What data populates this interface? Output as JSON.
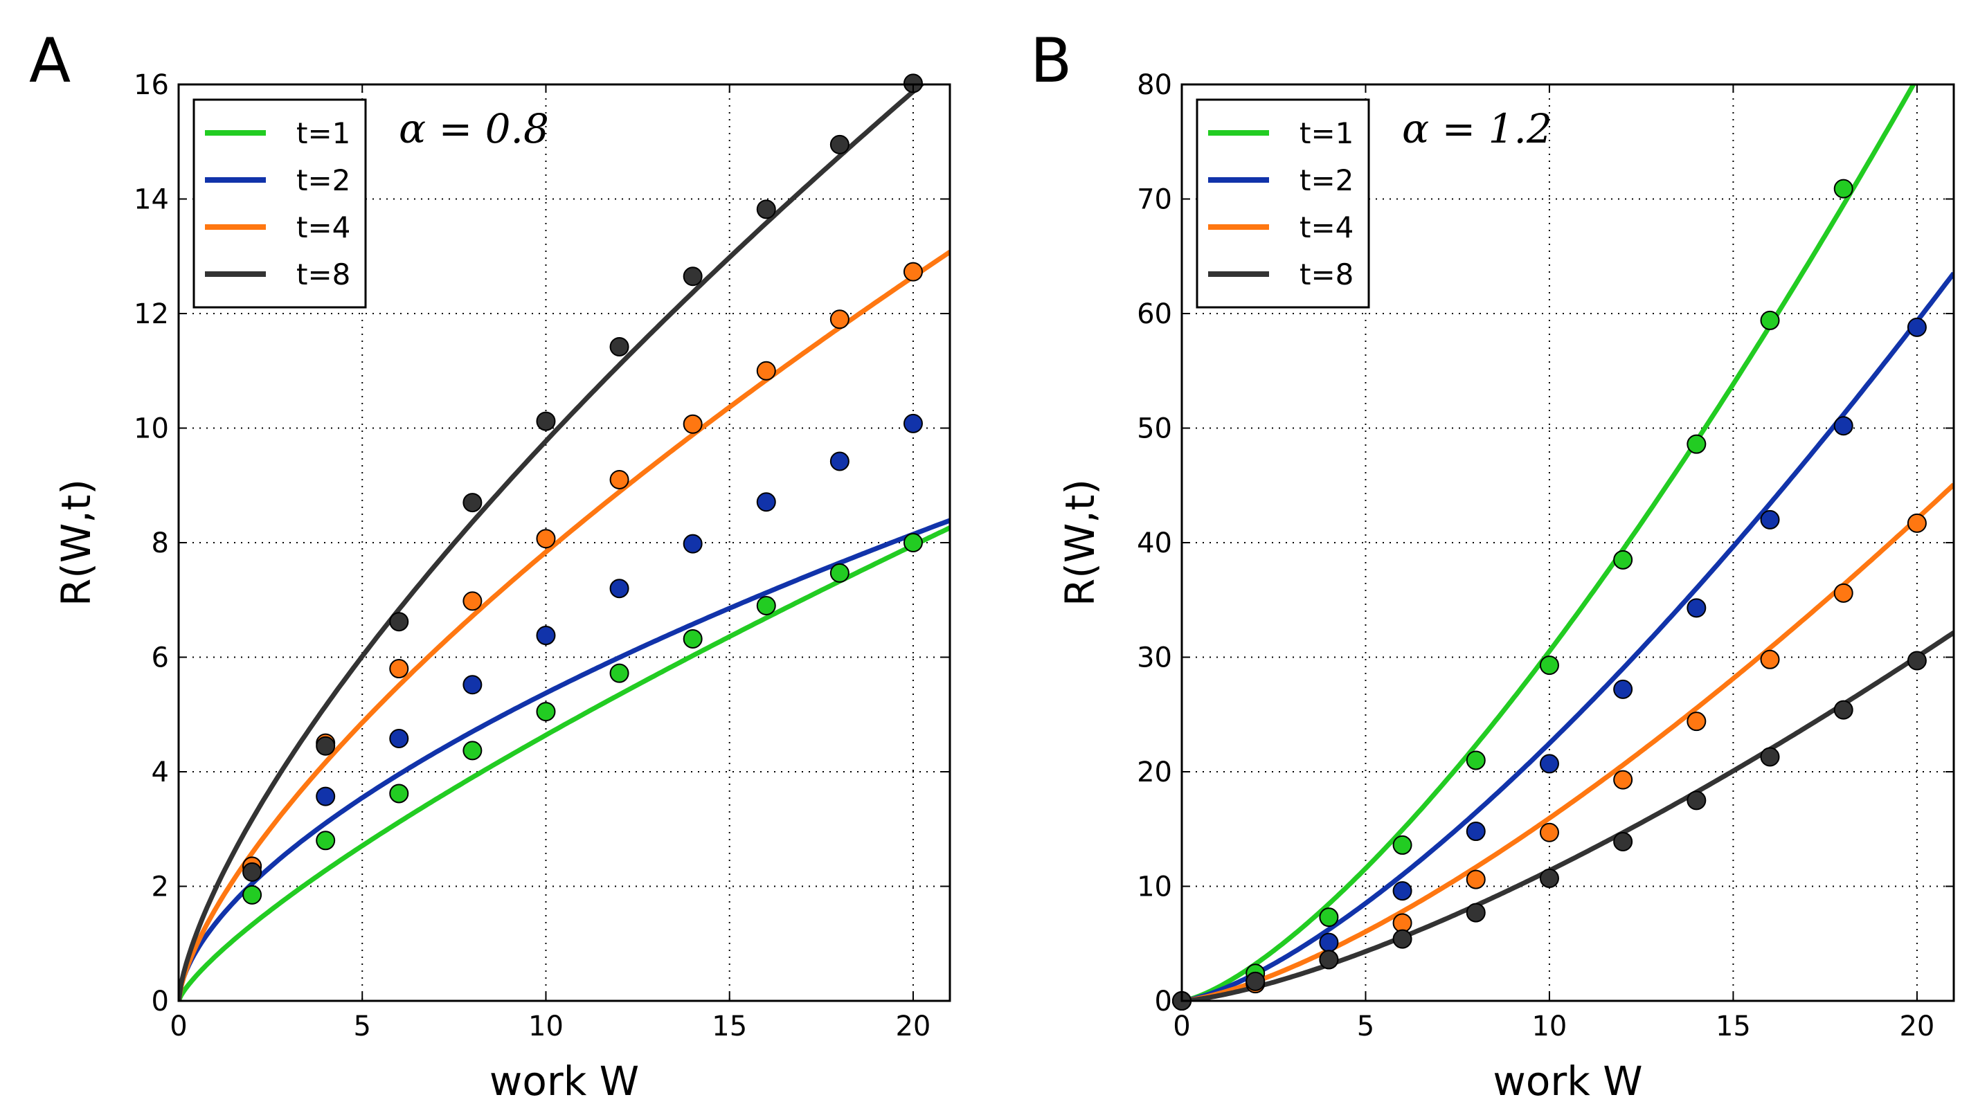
{
  "panels": [
    {
      "letter": "A",
      "annotation": "α = 0.8",
      "xlabel": "work W",
      "ylabel": "R(W,t)"
    },
    {
      "letter": "B",
      "annotation": "α = 1.2",
      "xlabel": "work W",
      "ylabel": "R(W,t)"
    }
  ],
  "chart_data": [
    {
      "type": "line",
      "xlim": [
        0,
        21
      ],
      "ylim": [
        0,
        16
      ],
      "xticks": [
        0,
        5,
        10,
        15,
        20
      ],
      "yticks": [
        0,
        2,
        4,
        6,
        8,
        10,
        12,
        14,
        16
      ],
      "grid": true,
      "legend_position": "top-left",
      "series": [
        {
          "name": "t=1",
          "color": "#22cc22",
          "curve_coeff": 0.7755,
          "curve_exp": 0.777,
          "points": [
            [
              2,
              1.85
            ],
            [
              4,
              2.8
            ],
            [
              6,
              3.62
            ],
            [
              8,
              4.37
            ],
            [
              10,
              5.05
            ],
            [
              12,
              5.72
            ],
            [
              14,
              6.32
            ],
            [
              16,
              6.9
            ],
            [
              18,
              7.47
            ],
            [
              20,
              8.0
            ]
          ]
        },
        {
          "name": "t=2",
          "color": "#1133aa",
          "curve_coeff": 1.35,
          "curve_exp": 0.6,
          "points": [
            [
              2,
              2.35
            ],
            [
              4,
              3.57
            ],
            [
              6,
              4.58
            ],
            [
              8,
              5.52
            ],
            [
              10,
              6.38
            ],
            [
              12,
              7.2
            ],
            [
              14,
              7.98
            ],
            [
              16,
              8.71
            ],
            [
              18,
              9.42
            ],
            [
              20,
              10.08
            ]
          ]
        },
        {
          "name": "t=4",
          "color": "#ff7711",
          "curve_coeff": 1.6,
          "curve_exp": 0.69,
          "points": [
            [
              2,
              2.35
            ],
            [
              4,
              4.5
            ],
            [
              6,
              5.8
            ],
            [
              8,
              6.98
            ],
            [
              10,
              8.07
            ],
            [
              12,
              9.1
            ],
            [
              14,
              10.07
            ],
            [
              16,
              11.0
            ],
            [
              18,
              11.9
            ],
            [
              20,
              12.73
            ]
          ]
        },
        {
          "name": "t=8",
          "color": "#333333",
          "curve_coeff": 1.95,
          "curve_exp": 0.7,
          "points": [
            [
              2,
              2.25
            ],
            [
              4,
              4.45
            ],
            [
              6,
              6.62
            ],
            [
              8,
              8.7
            ],
            [
              10,
              10.12
            ],
            [
              12,
              11.42
            ],
            [
              14,
              12.65
            ],
            [
              16,
              13.82
            ],
            [
              18,
              14.95
            ],
            [
              20,
              16.02
            ]
          ]
        }
      ]
    },
    {
      "type": "line",
      "xlim": [
        0,
        21
      ],
      "ylim": [
        0,
        80
      ],
      "xticks": [
        0,
        5,
        10,
        15,
        20
      ],
      "yticks": [
        0,
        10,
        20,
        30,
        40,
        50,
        60,
        70,
        80
      ],
      "grid": true,
      "legend_position": "top-left",
      "series": [
        {
          "name": "t=1",
          "color": "#22cc22",
          "curve_coeff": 1.215,
          "curve_exp": 1.4,
          "points": [
            [
              0,
              0
            ],
            [
              2,
              2.4
            ],
            [
              4,
              7.3
            ],
            [
              6,
              13.6
            ],
            [
              8,
              21.0
            ],
            [
              10,
              29.3
            ],
            [
              12,
              38.5
            ],
            [
              14,
              48.6
            ],
            [
              16,
              59.4
            ],
            [
              18,
              70.9
            ]
          ]
        },
        {
          "name": "t=2",
          "color": "#1133aa",
          "curve_coeff": 0.895,
          "curve_exp": 1.4,
          "points": [
            [
              0,
              0
            ],
            [
              2,
              1.7
            ],
            [
              4,
              5.1
            ],
            [
              6,
              9.6
            ],
            [
              8,
              14.8
            ],
            [
              10,
              20.7
            ],
            [
              12,
              27.2
            ],
            [
              14,
              34.3
            ],
            [
              16,
              42.0
            ],
            [
              18,
              50.2
            ],
            [
              20,
              58.8
            ]
          ]
        },
        {
          "name": "t=4",
          "color": "#ff7711",
          "curve_coeff": 0.635,
          "curve_exp": 1.4,
          "points": [
            [
              0,
              0
            ],
            [
              2,
              1.5
            ],
            [
              4,
              3.6
            ],
            [
              6,
              6.8
            ],
            [
              8,
              10.6
            ],
            [
              10,
              14.7
            ],
            [
              12,
              19.3
            ],
            [
              14,
              24.4
            ],
            [
              16,
              29.8
            ],
            [
              18,
              35.6
            ],
            [
              20,
              41.7
            ]
          ]
        },
        {
          "name": "t=8",
          "color": "#333333",
          "curve_coeff": 0.453,
          "curve_exp": 1.4,
          "points": [
            [
              0,
              0
            ],
            [
              2,
              1.7
            ],
            [
              4,
              3.6
            ],
            [
              6,
              5.4
            ],
            [
              8,
              7.7
            ],
            [
              10,
              10.7
            ],
            [
              12,
              13.9
            ],
            [
              14,
              17.5
            ],
            [
              16,
              21.3
            ],
            [
              18,
              25.4
            ],
            [
              20,
              29.7
            ]
          ]
        }
      ]
    }
  ]
}
